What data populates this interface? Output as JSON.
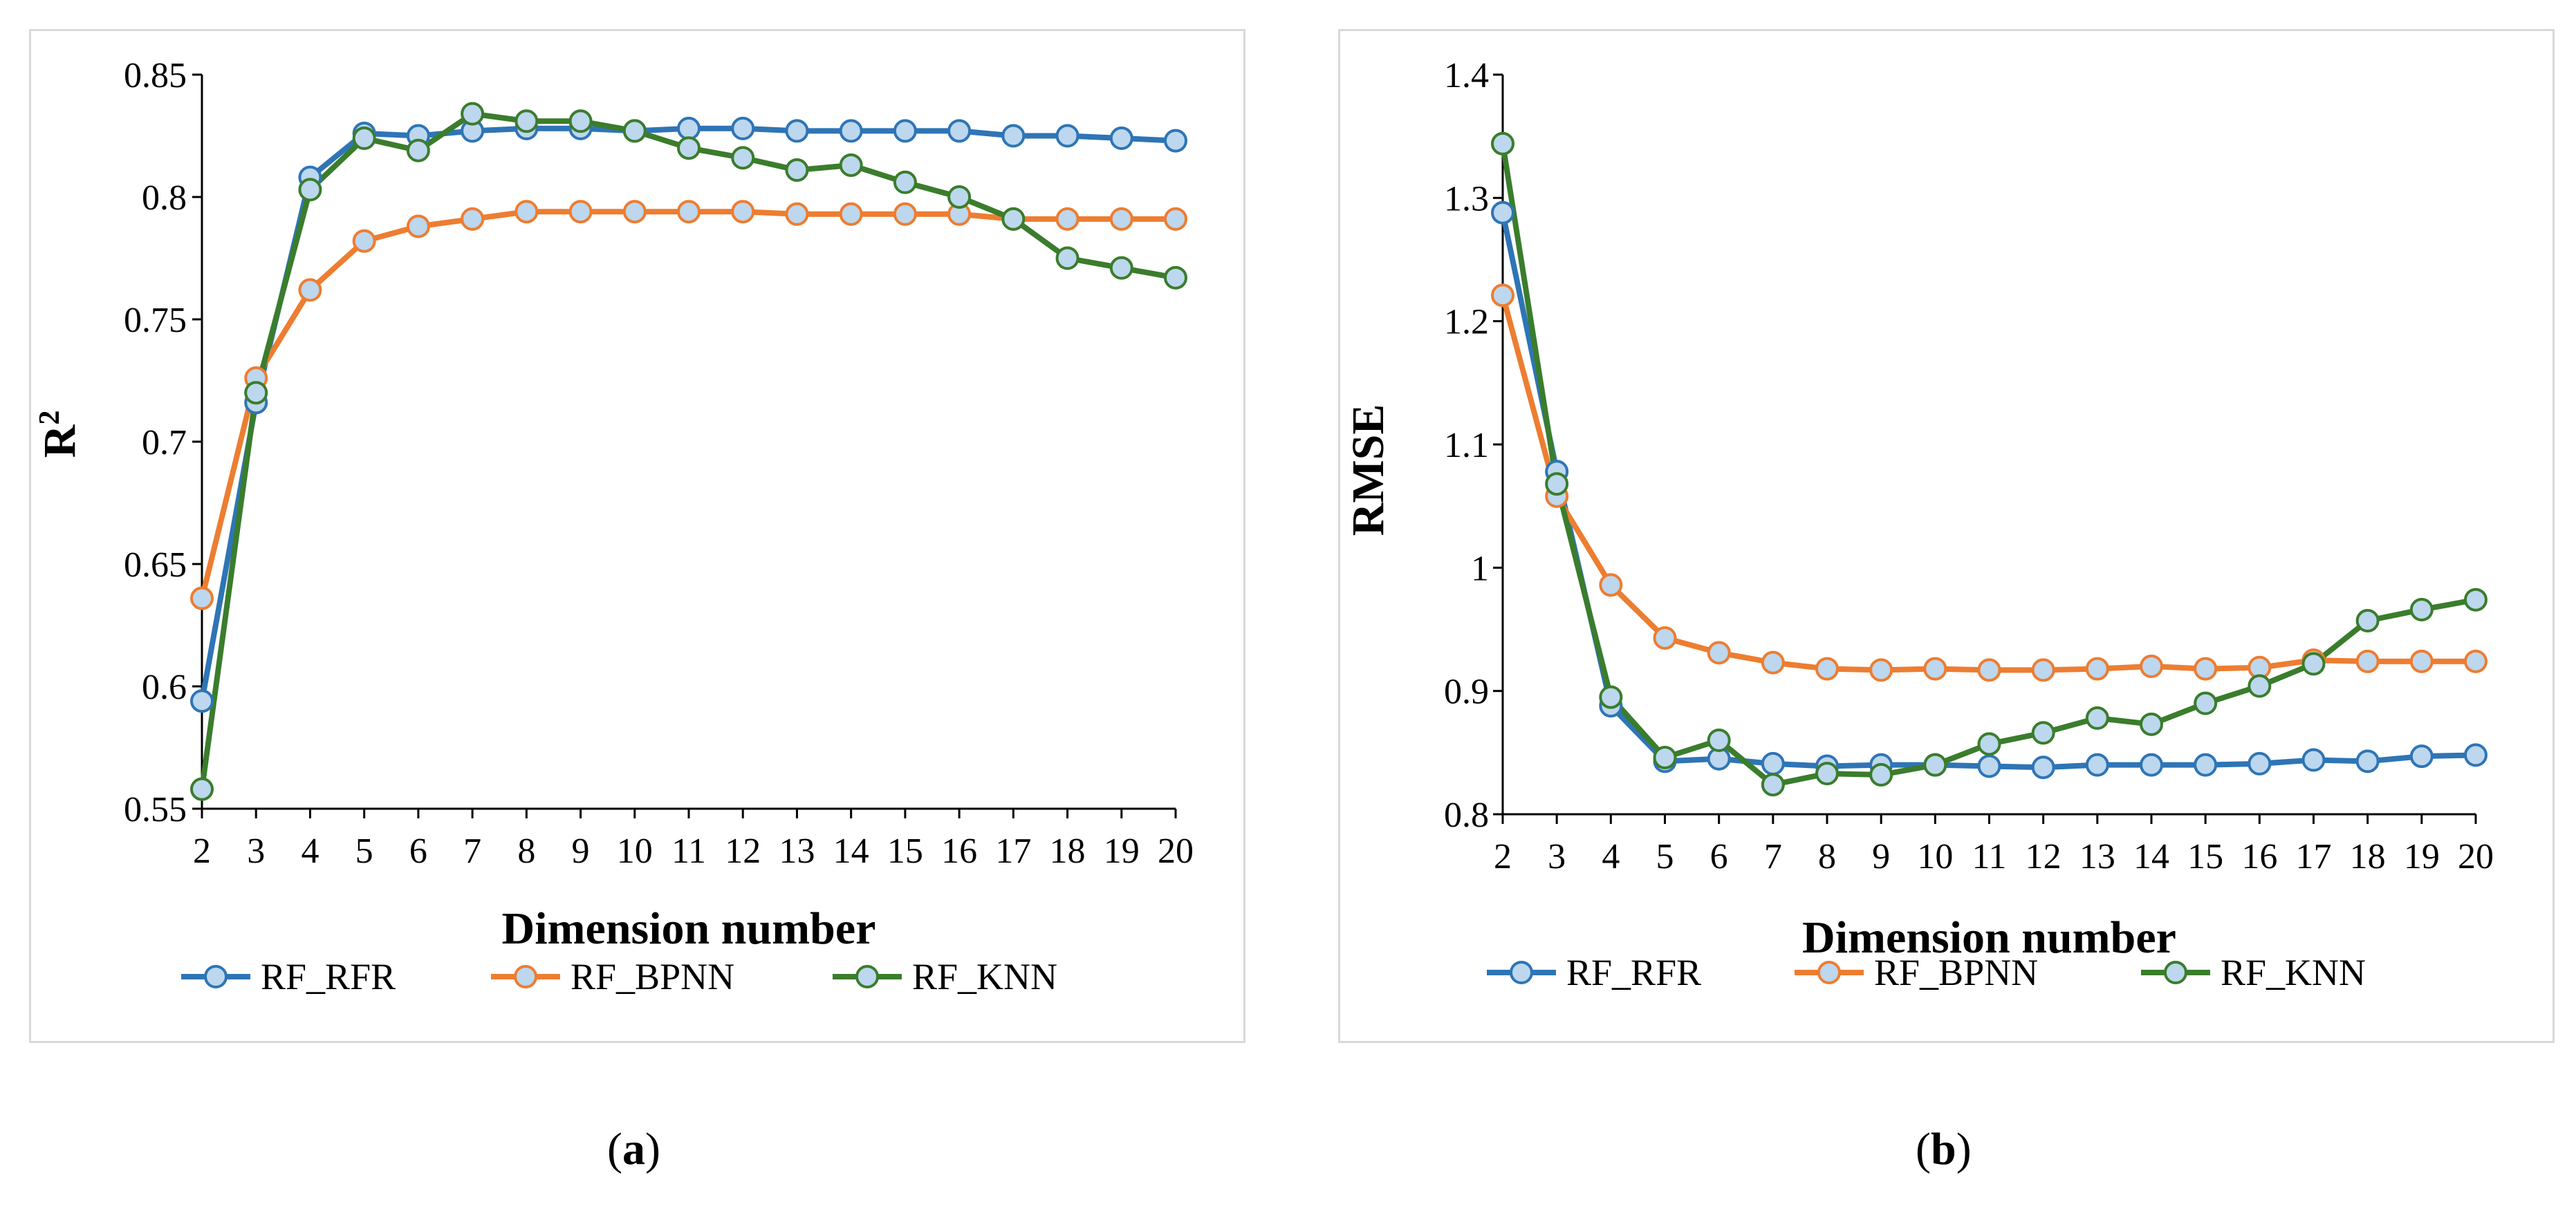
{
  "figure": {
    "caption_a": {
      "open": "(",
      "letter": "a",
      "close": ")"
    },
    "caption_b": {
      "open": "(",
      "letter": "b",
      "close": ")"
    }
  },
  "series_styles": [
    {
      "name": "RF_RFR",
      "color": "#2e75b6"
    },
    {
      "name": "RF_BPNN",
      "color": "#ed7d31"
    },
    {
      "name": "RF_KNN",
      "color": "#3a7d2c"
    }
  ],
  "marker_fill": "#bdd7ee",
  "chart_data": [
    {
      "type": "line",
      "title": "",
      "xlabel": "Dimension number",
      "ylabel": "R",
      "ylabel_sup": "2",
      "x": [
        2,
        3,
        4,
        5,
        6,
        7,
        8,
        9,
        10,
        11,
        12,
        13,
        14,
        15,
        16,
        17,
        18,
        19,
        20
      ],
      "ylim": [
        0.55,
        0.85
      ],
      "yticks": [
        0.55,
        0.6,
        0.65,
        0.7,
        0.75,
        0.8,
        0.85
      ],
      "ytick_labels": [
        "0.55",
        "0.6",
        "0.65",
        "0.7",
        "0.75",
        "0.8",
        "0.85"
      ],
      "legend": "bottom",
      "series": [
        {
          "name": "RF_RFR",
          "values": [
            0.594,
            0.716,
            0.808,
            0.826,
            0.825,
            0.827,
            0.828,
            0.828,
            0.827,
            0.828,
            0.828,
            0.827,
            0.827,
            0.827,
            0.827,
            0.825,
            0.825,
            0.824,
            0.823
          ]
        },
        {
          "name": "RF_BPNN",
          "values": [
            0.636,
            0.726,
            0.762,
            0.782,
            0.788,
            0.791,
            0.794,
            0.794,
            0.794,
            0.794,
            0.794,
            0.793,
            0.793,
            0.793,
            0.793,
            0.791,
            0.791,
            0.791,
            0.791
          ]
        },
        {
          "name": "RF_KNN",
          "values": [
            0.558,
            0.72,
            0.803,
            0.824,
            0.819,
            0.834,
            0.831,
            0.831,
            0.827,
            0.82,
            0.816,
            0.811,
            0.813,
            0.806,
            0.8,
            0.791,
            0.775,
            0.771,
            0.767
          ]
        }
      ]
    },
    {
      "type": "line",
      "title": "",
      "xlabel": "Dimension number",
      "ylabel": "RMSE",
      "ylabel_sup": "",
      "x": [
        2,
        3,
        4,
        5,
        6,
        7,
        8,
        9,
        10,
        11,
        12,
        13,
        14,
        15,
        16,
        17,
        18,
        19,
        20
      ],
      "ylim": [
        0.8,
        1.4
      ],
      "yticks": [
        0.8,
        0.9,
        1.0,
        1.1,
        1.2,
        1.3,
        1.4
      ],
      "ytick_labels": [
        "0.8",
        "0.9",
        "1",
        "1.1",
        "1.2",
        "1.3",
        "1.4"
      ],
      "legend": "bottom",
      "series": [
        {
          "name": "RF_RFR",
          "values": [
            1.288,
            1.078,
            0.888,
            0.843,
            0.845,
            0.841,
            0.839,
            0.84,
            0.84,
            0.839,
            0.838,
            0.84,
            0.84,
            0.84,
            0.841,
            0.844,
            0.843,
            0.847,
            0.848
          ]
        },
        {
          "name": "RF_BPNN",
          "values": [
            1.221,
            1.058,
            0.986,
            0.943,
            0.931,
            0.923,
            0.918,
            0.917,
            0.918,
            0.917,
            0.917,
            0.918,
            0.92,
            0.918,
            0.919,
            0.925,
            0.924,
            0.924,
            0.924
          ]
        },
        {
          "name": "RF_KNN",
          "values": [
            1.344,
            1.068,
            0.895,
            0.846,
            0.86,
            0.824,
            0.833,
            0.832,
            0.84,
            0.857,
            0.866,
            0.878,
            0.873,
            0.89,
            0.904,
            0.922,
            0.957,
            0.966,
            0.974
          ]
        }
      ]
    }
  ]
}
